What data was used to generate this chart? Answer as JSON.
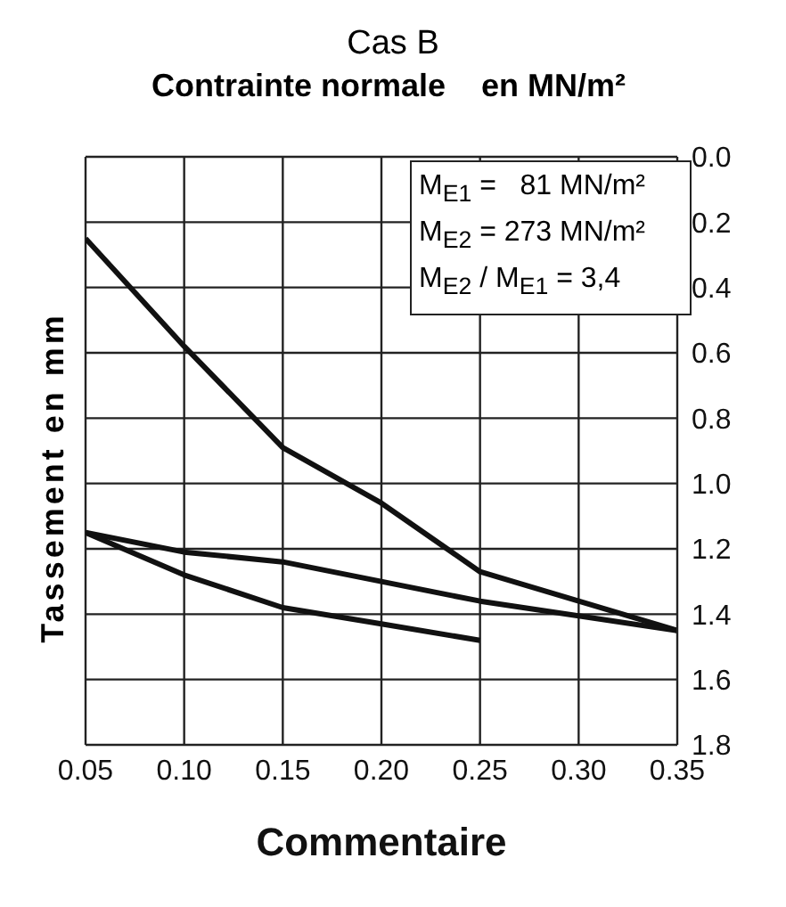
{
  "chart_data": {
    "type": "line",
    "title": "Cas B",
    "subtitle": "Contrainte normale    en MN/m²",
    "xlabel": "Commentaire",
    "ylabel": "Tassement en mm",
    "annotations": [
      "M$_{E1}$ =   81 MN/m²",
      "M$_{E2}$ = 273 MN/m²",
      "M$_{E2}$ / M$_{E1}$ = 3,4"
    ],
    "series": [
      {
        "color": "#111111",
        "x": [
          0.05,
          0.1,
          0.15,
          0.2,
          0.25,
          0.35
        ],
        "values": [
          0.25,
          0.58,
          0.89,
          1.06,
          1.27,
          1.45
        ]
      },
      {
        "color": "#111111",
        "x": [
          0.05,
          0.1,
          0.15,
          0.25,
          0.35
        ],
        "values": [
          1.15,
          1.21,
          1.24,
          1.36,
          1.45
        ]
      },
      {
        "color": "#111111",
        "x": [
          0.05,
          0.1,
          0.15,
          0.2,
          0.25
        ],
        "values": [
          1.15,
          1.28,
          1.38,
          1.43,
          1.48
        ]
      }
    ],
    "xlim": [
      0.05,
      0.35
    ],
    "xticks": [
      {
        "value": 0.05,
        "label": "0.05"
      },
      {
        "value": 0.1,
        "label": "0.10"
      },
      {
        "value": 0.15,
        "label": "0.15"
      },
      {
        "value": 0.2,
        "label": "0.20"
      },
      {
        "value": 0.25,
        "label": "0.25"
      },
      {
        "value": 0.3,
        "label": "0.30"
      },
      {
        "value": 0.35,
        "label": "0.35"
      }
    ],
    "ylim": [
      1.8,
      0
    ],
    "yticks": [
      {
        "value": 0,
        "label": "0.0"
      },
      {
        "value": 0.2,
        "label": "0.2"
      },
      {
        "value": 0.4,
        "label": "0.4"
      },
      {
        "value": 0.6,
        "label": "0.6"
      },
      {
        "value": 0.8,
        "label": "0.8"
      },
      {
        "value": 1,
        "label": "1.0"
      },
      {
        "value": 1.2,
        "label": "1.2"
      },
      {
        "value": 1.4,
        "label": "1.4"
      },
      {
        "value": 1.6,
        "label": "1.6"
      },
      {
        "value": 1.8,
        "label": "1.8"
      }
    ],
    "grid": true,
    "marker": "none",
    "line_style": "solid"
  }
}
